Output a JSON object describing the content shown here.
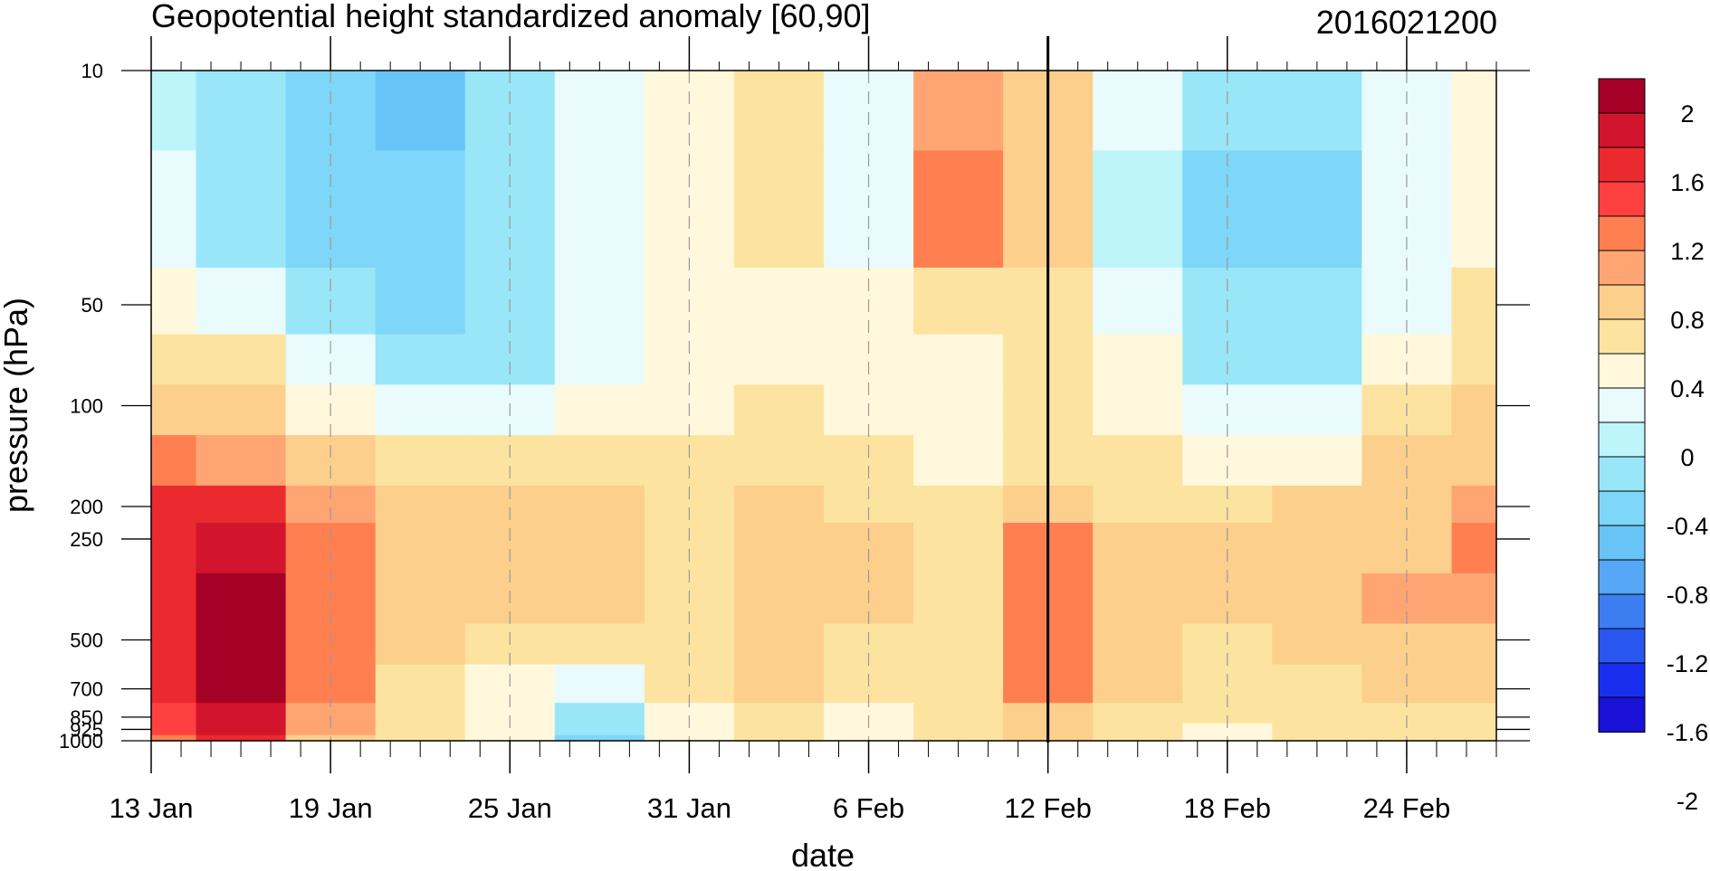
{
  "chart_data": {
    "type": "heatmap",
    "title": "Geopotential height standardized anomaly [60,90]",
    "right_title": "2016021200",
    "xlabel": "date",
    "ylabel": "pressure (hPa)",
    "x_ticks": [
      "13 Jan",
      "19 Jan",
      "25 Jan",
      "31 Jan",
      "6 Feb",
      "12 Feb",
      "18 Feb",
      "24 Feb"
    ],
    "x_range": [
      "13 Jan",
      "27 Feb"
    ],
    "y_scale": "log",
    "y_ticks": [
      "10",
      "50",
      "100",
      "200",
      "250",
      "500",
      "700",
      "850",
      "925",
      "1000"
    ],
    "y_range": [
      1000,
      10
    ],
    "current_date_marker": "12 Feb",
    "colorbar_labels": [
      "2",
      "1.6",
      "1.2",
      "0.8",
      "0.4",
      "0",
      "-0.4",
      "-0.8",
      "-1.2",
      "-1.6",
      "-2"
    ],
    "colorbar_colors": [
      "#a50026",
      "#d2142d",
      "#ea2a2e",
      "#ff4040",
      "#ff7f50",
      "#ffa574",
      "#fccf8c",
      "#fde3a0",
      "#fff8dc",
      "#e9fbfd",
      "#bdf5fb",
      "#99e6f8",
      "#7ed6f8",
      "#68c3f7",
      "#56a7f5",
      "#3c7ef2",
      "#2a56f0",
      "#1a2ef0",
      "#1a12d6"
    ],
    "rows": [
      "10",
      "30",
      "50",
      "75",
      "100",
      "150",
      "200",
      "250",
      "400",
      "500",
      "700",
      "850",
      "925",
      "1000"
    ],
    "columns": [
      "13 Jan",
      "16 Jan",
      "19 Jan",
      "22 Jan",
      "25 Jan",
      "28 Jan",
      "31 Jan",
      "3 Feb",
      "6 Feb",
      "9 Feb",
      "12 Feb",
      "15 Feb",
      "18 Feb",
      "21 Feb",
      "24 Feb",
      "27 Feb"
    ],
    "values": [
      [
        -0.5,
        -0.7,
        -0.9,
        -1.1,
        -0.6,
        -0.3,
        -0.1,
        0.1,
        -0.3,
        0.5,
        0.2,
        -0.4,
        -0.7,
        -0.6,
        -0.3,
        -0.1
      ],
      [
        -0.4,
        -0.6,
        -0.8,
        -1.0,
        -0.7,
        -0.3,
        -0.1,
        0.1,
        -0.4,
        0.6,
        0.3,
        -0.5,
        -0.8,
        -0.8,
        -0.4,
        -0.1
      ],
      [
        -0.1,
        -0.3,
        -0.6,
        -0.8,
        -0.6,
        -0.3,
        -0.1,
        -0.1,
        -0.2,
        0.1,
        0.1,
        -0.3,
        -0.7,
        -0.7,
        -0.3,
        0.0
      ],
      [
        0.1,
        0.0,
        -0.3,
        -0.6,
        -0.6,
        -0.3,
        -0.1,
        -0.1,
        -0.1,
        -0.1,
        0.1,
        -0.2,
        -0.6,
        -0.6,
        -0.1,
        0.1
      ],
      [
        0.2,
        0.2,
        -0.1,
        -0.4,
        -0.4,
        -0.2,
        -0.1,
        0.0,
        -0.1,
        -0.1,
        0.1,
        -0.1,
        -0.3,
        -0.3,
        0.0,
        0.2
      ],
      [
        0.7,
        0.5,
        0.2,
        0.0,
        0.0,
        0.1,
        0.0,
        0.1,
        0.0,
        -0.1,
        0.1,
        0.0,
        -0.1,
        -0.1,
        0.2,
        0.4
      ],
      [
        1.0,
        1.0,
        0.5,
        0.2,
        0.2,
        0.2,
        0.0,
        0.2,
        0.1,
        0.0,
        0.4,
        0.1,
        0.0,
        0.2,
        0.4,
        0.5
      ],
      [
        1.1,
        1.3,
        0.6,
        0.3,
        0.4,
        0.2,
        0.1,
        0.3,
        0.2,
        0.1,
        0.6,
        0.3,
        0.2,
        0.3,
        0.4,
        0.6
      ],
      [
        1.1,
        1.6,
        0.7,
        0.3,
        0.2,
        0.2,
        0.1,
        0.3,
        0.2,
        0.1,
        0.7,
        0.3,
        0.2,
        0.3,
        0.5,
        0.5
      ],
      [
        1.0,
        1.5,
        0.6,
        0.2,
        0.1,
        0.0,
        0.1,
        0.3,
        0.1,
        0.1,
        0.7,
        0.3,
        0.1,
        0.2,
        0.3,
        0.3
      ],
      [
        1.0,
        1.4,
        0.6,
        0.1,
        -0.1,
        -0.3,
        0.0,
        0.2,
        0.0,
        0.1,
        0.6,
        0.2,
        0.1,
        0.1,
        0.2,
        0.2
      ],
      [
        0.9,
        1.3,
        0.5,
        0.1,
        -0.2,
        -0.6,
        -0.1,
        0.0,
        -0.1,
        0.1,
        0.4,
        0.1,
        0.0,
        0.0,
        0.1,
        0.1
      ],
      [
        0.9,
        1.2,
        0.5,
        0.1,
        -0.2,
        -0.7,
        -0.1,
        0.0,
        -0.1,
        0.0,
        0.3,
        0.0,
        -0.1,
        0.0,
        0.1,
        0.1
      ],
      [
        0.8,
        1.1,
        0.4,
        0.0,
        -0.2,
        -0.8,
        -0.1,
        0.0,
        -0.1,
        0.0,
        0.2,
        0.0,
        -0.1,
        0.0,
        0.0,
        0.0
      ]
    ]
  }
}
